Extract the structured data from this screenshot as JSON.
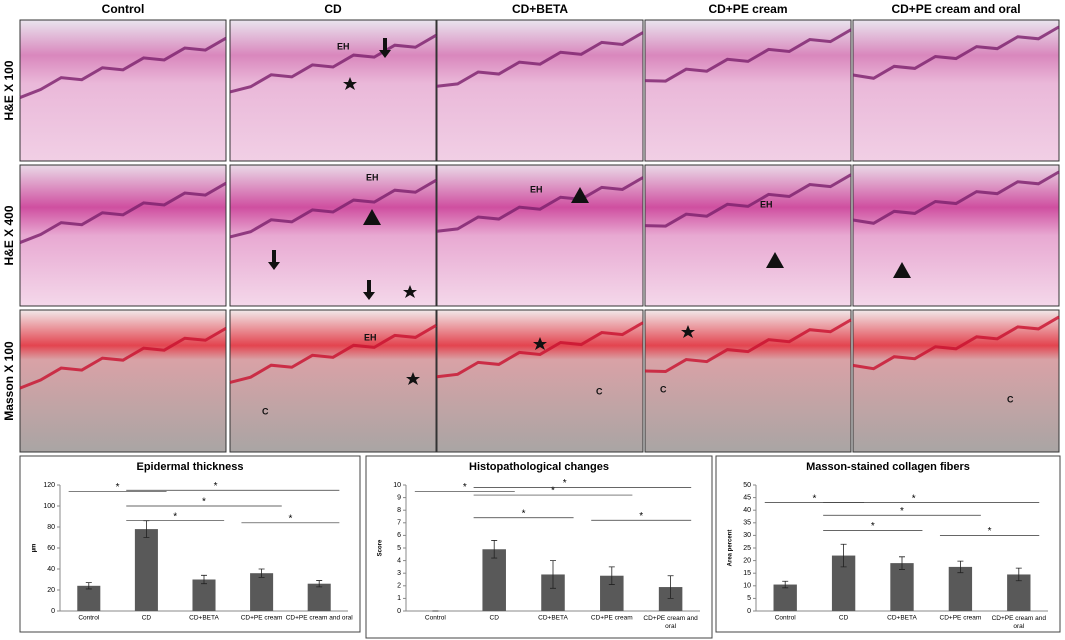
{
  "figure": {
    "columns": [
      "Control",
      "CD",
      "CD+BETA",
      "CD+PE cream",
      "CD+PE cream and oral"
    ],
    "rows": [
      "H&E X 100",
      "H&E X 400",
      "Masson X 100"
    ],
    "annotations": [
      "EH",
      "EH",
      "EH",
      "EH",
      "EH",
      "C",
      "C",
      "C",
      "C"
    ]
  },
  "chart_data": [
    {
      "type": "bar",
      "title": "Epidermal thickness",
      "ylabel": "µm",
      "categories": [
        "Control",
        "CD",
        "CD+BETA",
        "CD+PE cream",
        "CD+PE cream and oral"
      ],
      "values": [
        24,
        78,
        30,
        36,
        26
      ],
      "errors": [
        3,
        8,
        4,
        4,
        3
      ],
      "color": "#595959",
      "ylim": [
        0,
        120
      ],
      "yticks": [
        0,
        20,
        40,
        60,
        80,
        100,
        120
      ],
      "significance": [
        {
          "from": 0,
          "to": 1,
          "y": 114,
          "label": "*"
        },
        {
          "from": 1,
          "to": 4,
          "y": 115,
          "label": "*"
        },
        {
          "from": 1,
          "to": 3,
          "y": 100,
          "label": "*"
        },
        {
          "from": 1,
          "to": 2,
          "y": 86,
          "label": "*"
        },
        {
          "from": 3,
          "to": 4,
          "y": 84,
          "label": "*"
        }
      ]
    },
    {
      "type": "bar",
      "title": "Histopathological changes",
      "ylabel": "Score",
      "categories": [
        "Control",
        "CD",
        "CD+BETA",
        "CD+PE cream",
        "CD+PE cream and oral"
      ],
      "values": [
        0,
        4.9,
        2.9,
        2.8,
        1.9
      ],
      "errors": [
        0,
        0.7,
        1.1,
        0.7,
        0.9
      ],
      "color": "#595959",
      "ylim": [
        0,
        10
      ],
      "yticks": [
        0,
        1,
        2,
        3,
        4,
        5,
        6,
        7,
        8,
        9,
        10
      ],
      "significance": [
        {
          "from": 0,
          "to": 1,
          "y": 9.5,
          "label": "*"
        },
        {
          "from": 1,
          "to": 4,
          "y": 9.8,
          "label": "*"
        },
        {
          "from": 1,
          "to": 3,
          "y": 9.2,
          "label": "*"
        },
        {
          "from": 1,
          "to": 2,
          "y": 7.4,
          "label": "*"
        },
        {
          "from": 3,
          "to": 4,
          "y": 7.2,
          "label": "*"
        }
      ]
    },
    {
      "type": "bar",
      "title": "Masson-stained collagen fibers",
      "ylabel": "Area percent",
      "categories": [
        "Control",
        "CD",
        "CD+BETA",
        "CD+PE cream",
        "CD+PE cream and oral"
      ],
      "values": [
        10.5,
        22,
        19,
        17.5,
        14.5
      ],
      "errors": [
        1.3,
        4.5,
        2.5,
        2.3,
        2.5
      ],
      "color": "#595959",
      "ylim": [
        0,
        50
      ],
      "yticks": [
        0,
        5,
        10,
        15,
        20,
        25,
        30,
        35,
        40,
        45,
        50
      ],
      "significance": [
        {
          "from": 0,
          "to": 1,
          "y": 43,
          "label": "*"
        },
        {
          "from": 1,
          "to": 4,
          "y": 43,
          "label": "*"
        },
        {
          "from": 1,
          "to": 3,
          "y": 38,
          "label": "*"
        },
        {
          "from": 1,
          "to": 2,
          "y": 32,
          "label": "*"
        },
        {
          "from": 3,
          "to": 4,
          "y": 30,
          "label": "*"
        }
      ]
    }
  ]
}
